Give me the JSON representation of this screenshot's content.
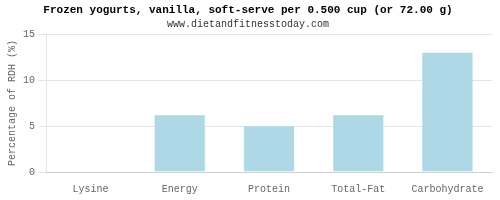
{
  "chart_data": {
    "type": "bar",
    "title": "Frozen yogurts, vanilla, soft-serve per 0.500 cup (or 72.00 g)",
    "subtitle": "www.dietandfitnesstoday.com",
    "categories": [
      "Lysine",
      "Energy",
      "Protein",
      "Total-Fat",
      "Carbohydrate"
    ],
    "values": [
      0,
      6.2,
      5.0,
      6.2,
      13.0
    ],
    "color": "#aed8e6",
    "ylabel": "Percentage of RDH (%)",
    "ylim": [
      0,
      15
    ],
    "yticks": [
      0,
      5,
      10,
      15
    ],
    "grid": true
  }
}
